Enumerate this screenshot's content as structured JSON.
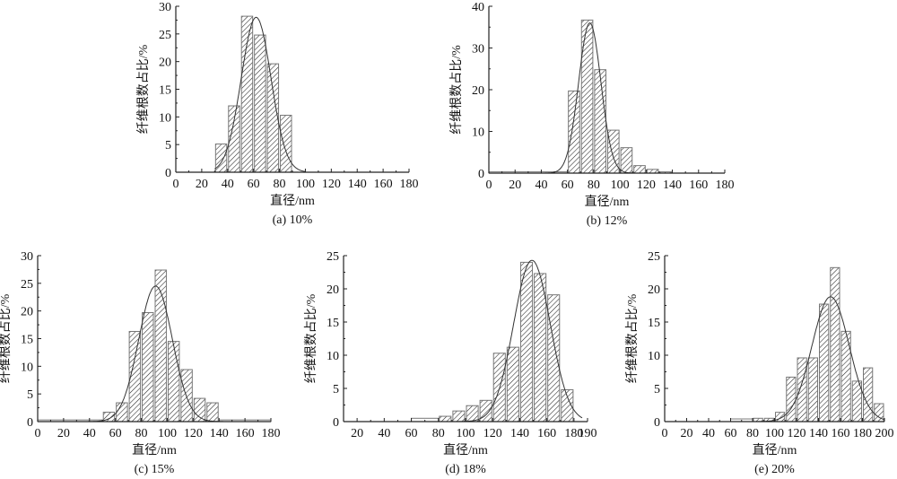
{
  "chart_data": [
    {
      "type": "bar",
      "title": "(a) 10%",
      "xlabel": "直径/nm",
      "ylabel": "纤维根数占比/%",
      "xlim": [
        0,
        180
      ],
      "ylim": [
        0,
        30
      ],
      "xticks": [
        0,
        20,
        40,
        60,
        80,
        100,
        120,
        140,
        160,
        180
      ],
      "yticks": [
        0,
        5,
        10,
        15,
        20,
        25,
        30
      ],
      "bins": [
        {
          "from": 30,
          "to": 40,
          "value": 5.1
        },
        {
          "from": 40,
          "to": 50,
          "value": 12.0
        },
        {
          "from": 50,
          "to": 60,
          "value": 28.2
        },
        {
          "from": 60,
          "to": 70,
          "value": 24.8
        },
        {
          "from": 70,
          "to": 80,
          "value": 19.6
        },
        {
          "from": 80,
          "to": 90,
          "value": 10.3
        }
      ],
      "fit": {
        "type": "gaussian",
        "mean": 62,
        "sigma": 11.5,
        "amplitude": 28.0,
        "range": [
          30,
          100
        ]
      }
    },
    {
      "type": "bar",
      "title": "(b) 12%",
      "xlabel": "直径/nm",
      "ylabel": "纤维根数占比/%",
      "xlim": [
        0,
        180
      ],
      "ylim": [
        0,
        40
      ],
      "xticks": [
        0,
        20,
        40,
        60,
        80,
        100,
        120,
        140,
        160,
        180
      ],
      "yticks": [
        0,
        10,
        20,
        30,
        40
      ],
      "bins": [
        {
          "from": 0,
          "to": 60,
          "value": 0.3
        },
        {
          "from": 60,
          "to": 70,
          "value": 19.7
        },
        {
          "from": 70,
          "to": 80,
          "value": 36.7
        },
        {
          "from": 80,
          "to": 90,
          "value": 24.8
        },
        {
          "from": 90,
          "to": 100,
          "value": 10.3
        },
        {
          "from": 100,
          "to": 110,
          "value": 6.1
        },
        {
          "from": 110,
          "to": 120,
          "value": 1.8
        },
        {
          "from": 120,
          "to": 130,
          "value": 0.9
        },
        {
          "from": 130,
          "to": 140,
          "value": 0.3
        }
      ],
      "fit": {
        "type": "gaussian",
        "mean": 77,
        "sigma": 8.5,
        "amplitude": 36.0,
        "range": [
          0,
          130
        ]
      }
    },
    {
      "type": "bar",
      "title": "(c) 15%",
      "xlabel": "直径/nm",
      "ylabel": "纤维根数占比/%",
      "xlim": [
        0,
        180
      ],
      "ylim": [
        0,
        30
      ],
      "xticks": [
        0,
        20,
        40,
        60,
        80,
        100,
        120,
        140,
        160,
        180
      ],
      "yticks": [
        0,
        5,
        10,
        15,
        20,
        25,
        30
      ],
      "bins": [
        {
          "from": 0,
          "to": 50,
          "value": 0.3
        },
        {
          "from": 50,
          "to": 60,
          "value": 1.7
        },
        {
          "from": 60,
          "to": 70,
          "value": 3.4
        },
        {
          "from": 70,
          "to": 80,
          "value": 16.3
        },
        {
          "from": 80,
          "to": 90,
          "value": 19.7
        },
        {
          "from": 90,
          "to": 100,
          "value": 27.4
        },
        {
          "from": 100,
          "to": 110,
          "value": 14.5
        },
        {
          "from": 110,
          "to": 120,
          "value": 9.4
        },
        {
          "from": 120,
          "to": 130,
          "value": 4.2
        },
        {
          "from": 130,
          "to": 140,
          "value": 3.4
        },
        {
          "from": 140,
          "to": 180,
          "value": 0.3
        }
      ],
      "fit": {
        "type": "gaussian",
        "mean": 91,
        "sigma": 13,
        "amplitude": 24.5,
        "range": [
          0,
          180
        ]
      }
    },
    {
      "type": "bar",
      "title": "(d) 18%",
      "xlabel": "直径/nm",
      "ylabel": "纤维根数占比/%",
      "xlim": [
        10,
        190
      ],
      "ylim": [
        0,
        25
      ],
      "xticks": [
        20,
        40,
        60,
        80,
        100,
        120,
        140,
        160,
        180,
        190
      ],
      "yticks": [
        0,
        5,
        10,
        15,
        20,
        25
      ],
      "bins": [
        {
          "from": 60,
          "to": 80,
          "value": 0.5
        },
        {
          "from": 80,
          "to": 90,
          "value": 0.8
        },
        {
          "from": 90,
          "to": 100,
          "value": 1.6
        },
        {
          "from": 100,
          "to": 110,
          "value": 2.4
        },
        {
          "from": 110,
          "to": 120,
          "value": 3.2
        },
        {
          "from": 120,
          "to": 130,
          "value": 10.3
        },
        {
          "from": 130,
          "to": 140,
          "value": 11.2
        },
        {
          "from": 140,
          "to": 150,
          "value": 24.0
        },
        {
          "from": 150,
          "to": 160,
          "value": 22.3
        },
        {
          "from": 160,
          "to": 170,
          "value": 19.1
        },
        {
          "from": 170,
          "to": 180,
          "value": 4.8
        }
      ],
      "fit": {
        "type": "gaussian",
        "mean": 149,
        "sigma": 13.5,
        "amplitude": 24.3,
        "range": [
          85,
          186
        ]
      }
    },
    {
      "type": "bar",
      "title": "(e) 20%",
      "xlabel": "直径/nm",
      "ylabel": "纤维根数占比/%",
      "xlim": [
        0,
        200
      ],
      "ylim": [
        0,
        25
      ],
      "xticks": [
        0,
        20,
        40,
        60,
        80,
        100,
        120,
        140,
        160,
        180,
        200
      ],
      "yticks": [
        0,
        5,
        10,
        15,
        20,
        25
      ],
      "bins": [
        {
          "from": 60,
          "to": 80,
          "value": 0.4
        },
        {
          "from": 80,
          "to": 90,
          "value": 0.5
        },
        {
          "from": 90,
          "to": 100,
          "value": 0.5
        },
        {
          "from": 100,
          "to": 110,
          "value": 1.4
        },
        {
          "from": 110,
          "to": 120,
          "value": 6.7
        },
        {
          "from": 120,
          "to": 130,
          "value": 9.6
        },
        {
          "from": 130,
          "to": 140,
          "value": 9.6
        },
        {
          "from": 140,
          "to": 150,
          "value": 17.7
        },
        {
          "from": 150,
          "to": 160,
          "value": 23.2
        },
        {
          "from": 160,
          "to": 170,
          "value": 13.6
        },
        {
          "from": 170,
          "to": 180,
          "value": 6.1
        },
        {
          "from": 180,
          "to": 190,
          "value": 8.1
        },
        {
          "from": 190,
          "to": 200,
          "value": 2.7
        }
      ],
      "fit": {
        "type": "gaussian",
        "mean": 151,
        "sigma": 17,
        "amplitude": 18.8,
        "range": [
          80,
          200
        ]
      }
    }
  ]
}
